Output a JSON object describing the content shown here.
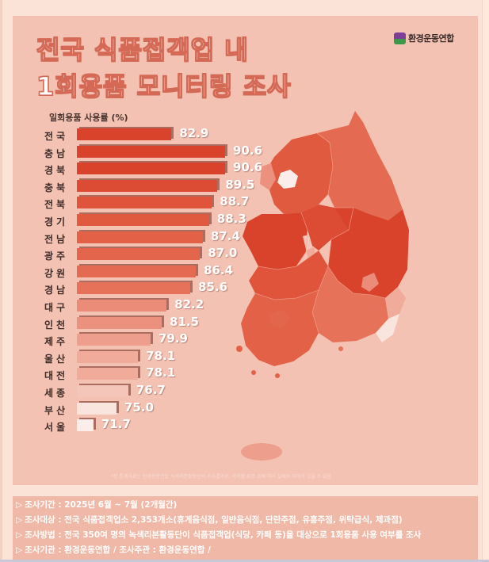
{
  "header": {
    "title_line1": "전국 식품접객업 내",
    "title_line2": "1회용품 모니터링 조사",
    "logo_text": "환경운동연합"
  },
  "chart_data": {
    "type": "bar",
    "orientation": "horizontal",
    "title": "전국 식품접객업 내 1회용품 모니터링 조사",
    "xlabel": "",
    "ylabel": "일회용품 사용률 (%)",
    "categories": [
      "전국",
      "충남",
      "경북",
      "충북",
      "전북",
      "경기",
      "전남",
      "광주",
      "강원",
      "경남",
      "대구",
      "인천",
      "제주",
      "울산",
      "대전",
      "세종",
      "부산",
      "서울"
    ],
    "values": [
      82.9,
      90.6,
      90.6,
      89.5,
      88.7,
      88.3,
      87.4,
      87.0,
      86.4,
      85.6,
      82.2,
      81.5,
      79.9,
      78.1,
      78.1,
      76.7,
      75.0,
      71.7
    ],
    "value_unit": "%",
    "xlim": [
      70,
      92
    ],
    "grid": false,
    "legend": "none",
    "annotation": "choropleth map of South Korea colored by usage rate"
  },
  "bar_colors": [
    "#d9432b",
    "#d9432b",
    "#d9432b",
    "#dc4b33",
    "#df543b",
    "#e05a40",
    "#e26147",
    "#e3664c",
    "#e46b51",
    "#e57259",
    "#ea8c78",
    "#eb917e",
    "#ee9e8c",
    "#f0ab9b",
    "#f0ab9b",
    "#f4c5b9",
    "#fae4de",
    "#fbeeea"
  ],
  "axis_label": "일회용품 사용률 (%)",
  "footnote": "*본 통계자료는 환경운동연합 녹색리본활동단의 조사결과로, 지역별 표본 수에 따라 실제와 차이가 있을 수 있음",
  "info": {
    "lines": [
      {
        "key": "조사기간",
        "value": "2025년 6월 ~ 7월 (2개월간)"
      },
      {
        "key": "조사대상",
        "value": "전국 식품접객업소 2,353개소(휴게음식점, 일반음식점, 단란주점, 유흥주점, 위탁급식, 제과점)"
      },
      {
        "key": "조사방법",
        "value": "전국 350여 명의 녹색리본활동단이 식품접객업(식당, 카페 등)을 대상으로 1회용품 사용 여부를 조사"
      },
      {
        "key": "조사기관",
        "value": "환경운동연합 / 조사주관 : 환경운동연합 /"
      }
    ],
    "arrow": "▷",
    "separator": " : "
  }
}
